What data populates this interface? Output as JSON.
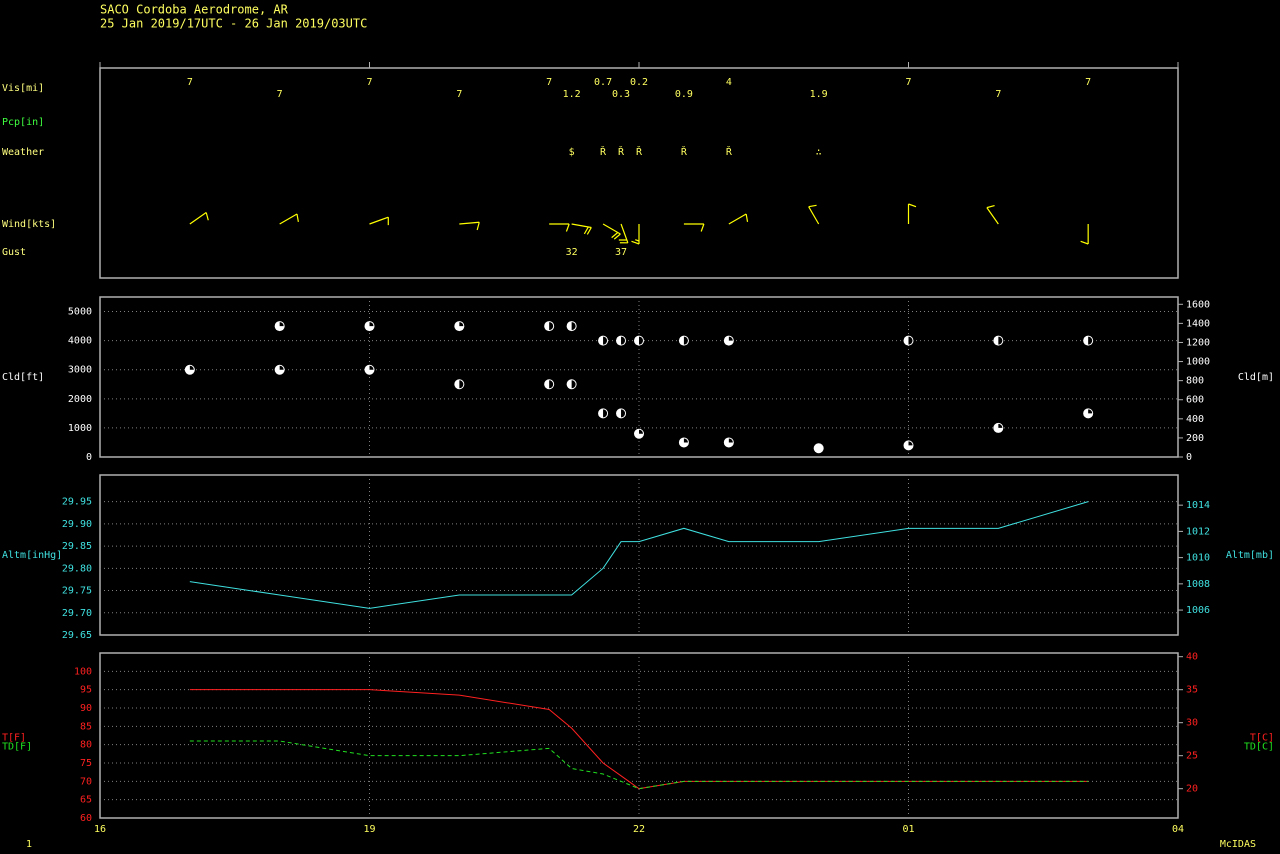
{
  "header": {
    "station": "SACO  Cordoba Aerodrome,  AR",
    "period": "25 Jan 2019/17UTC - 26 Jan 2019/03UTC"
  },
  "footer": {
    "page": "1",
    "software": "McIDAS"
  },
  "chart_data": [
    {
      "type": "station-obs",
      "xlim": [
        16,
        28
      ],
      "x": [
        17,
        18,
        19,
        20,
        21,
        21.25,
        21.6,
        21.8,
        22,
        22.5,
        23,
        24,
        25,
        26,
        27
      ],
      "vis": {
        "label": "Vis[mi]",
        "values": [
          7,
          7,
          7,
          7,
          7,
          1.2,
          0.7,
          0.3,
          0.2,
          0.9,
          4,
          1.9,
          7,
          7,
          7
        ]
      },
      "pcp": {
        "label": "Pcp[in]"
      },
      "weather": {
        "label": "Weather",
        "x": [
          21.25,
          21.6,
          21.8,
          22,
          22.5,
          23,
          24
        ],
        "symbols": [
          "$",
          "Ř",
          "Ř",
          "Ř",
          "Ř",
          "Ř",
          "∴"
        ]
      },
      "wind": {
        "label": "Wind[kts]",
        "direction": [
          55,
          60,
          70,
          85,
          90,
          100,
          120,
          160,
          180,
          90,
          60,
          330,
          360,
          325,
          180
        ],
        "speed": [
          10,
          10,
          10,
          10,
          10,
          20,
          20,
          20,
          15,
          10,
          10,
          10,
          10,
          10,
          10
        ]
      },
      "gust": {
        "label": "Gust",
        "x": [
          21.25,
          21.8
        ],
        "values": [
          32,
          37
        ]
      }
    },
    {
      "type": "scatter",
      "ylabels": [
        "Cld[ft]"
      ],
      "y2labels": [
        "Cld[m]"
      ],
      "xlim": [
        16,
        28
      ],
      "ylim": [
        0,
        5500
      ],
      "yticks": [
        0,
        1000,
        2000,
        3000,
        4000,
        5000
      ],
      "y2lim": [
        0,
        1676.4
      ],
      "y2ticks": [
        0,
        200,
        400,
        600,
        800,
        1000,
        1200,
        1400,
        1600
      ],
      "series": [
        {
          "color": "#ffffff",
          "x": [
            17,
            18,
            18,
            19,
            19,
            20,
            20,
            21,
            21,
            21.25,
            21.25,
            21.6,
            21.6,
            21.8,
            21.8,
            22,
            22,
            22.5,
            22.5,
            23,
            23,
            24,
            25,
            25,
            26,
            26,
            27,
            27
          ],
          "values": [
            3000,
            4500,
            3000,
            4500,
            3000,
            4500,
            2500,
            4500,
            2500,
            4500,
            2500,
            4000,
            1500,
            4000,
            1500,
            4000,
            800,
            4000,
            500,
            4000,
            500,
            300,
            4000,
            400,
            4000,
            1000,
            4000,
            1500
          ],
          "cover": [
            0.75,
            0.75,
            0.75,
            0.75,
            0.75,
            0.75,
            0.5,
            0.5,
            0.5,
            0.5,
            0.5,
            0.5,
            0.5,
            0.5,
            0.5,
            0.5,
            0.75,
            0.5,
            0.75,
            0.75,
            0.75,
            1,
            0.5,
            0.75,
            0.5,
            0.75,
            0.5,
            0.75
          ]
        }
      ]
    },
    {
      "type": "line",
      "ylabels": [
        "Altm[inHg]"
      ],
      "y2labels": [
        "Altm[mb]"
      ],
      "xlim": [
        16,
        28
      ],
      "ylim": [
        29.65,
        30.01
      ],
      "yticks": [
        29.65,
        {
          "value": 29.7,
          "label": "29.70"
        },
        29.75,
        {
          "value": 29.8,
          "label": "29.80"
        },
        29.85,
        {
          "value": 29.9,
          "label": "29.90"
        },
        29.95
      ],
      "y2lim": [
        1004.1,
        1016.3
      ],
      "y2ticks": [
        1006,
        1008,
        1010,
        1012,
        1014
      ],
      "series": [
        {
          "color": "#40e0e0",
          "x": [
            17,
            18,
            19,
            20,
            21,
            21.25,
            21.6,
            21.8,
            22,
            22.5,
            23,
            24,
            25,
            26,
            27
          ],
          "values": [
            29.77,
            29.74,
            29.71,
            29.74,
            29.74,
            29.74,
            29.8,
            29.86,
            29.86,
            29.89,
            29.86,
            29.86,
            29.89,
            29.89,
            29.95
          ]
        }
      ]
    },
    {
      "type": "line",
      "ylabels": [
        "T[F]",
        "TD[F]"
      ],
      "y2labels": [
        "T[C]",
        "TD[C]"
      ],
      "xlim": [
        16,
        28
      ],
      "ylim": [
        60,
        105
      ],
      "yticks": [
        60,
        65,
        70,
        75,
        80,
        85,
        90,
        95,
        100
      ],
      "y2lim": [
        15.56,
        40.56
      ],
      "y2ticks": [
        20,
        25,
        30,
        35,
        40
      ],
      "xticks": [
        16,
        19,
        22,
        {
          "value": 25,
          "label": "01"
        },
        {
          "value": 28,
          "label": "04"
        }
      ],
      "series": [
        {
          "color": "#ff2020",
          "dashed": false,
          "x": [
            17,
            18,
            19,
            20,
            21,
            21.25,
            21.6,
            21.8,
            22,
            22.5,
            23,
            24,
            25,
            26,
            27
          ],
          "values": [
            95,
            95,
            95,
            93.5,
            89.6,
            84.5,
            75,
            71.5,
            68,
            70,
            70,
            70,
            70,
            70,
            70
          ]
        },
        {
          "color": "#20e020",
          "dashed": true,
          "x": [
            17,
            18,
            19,
            20,
            21,
            21.25,
            21.6,
            21.8,
            22,
            22.5,
            23,
            24,
            25,
            26,
            27
          ],
          "values": [
            81,
            81,
            77,
            77,
            79,
            73.5,
            72,
            70,
            68,
            70,
            70,
            70,
            70,
            70,
            70
          ]
        }
      ]
    }
  ]
}
